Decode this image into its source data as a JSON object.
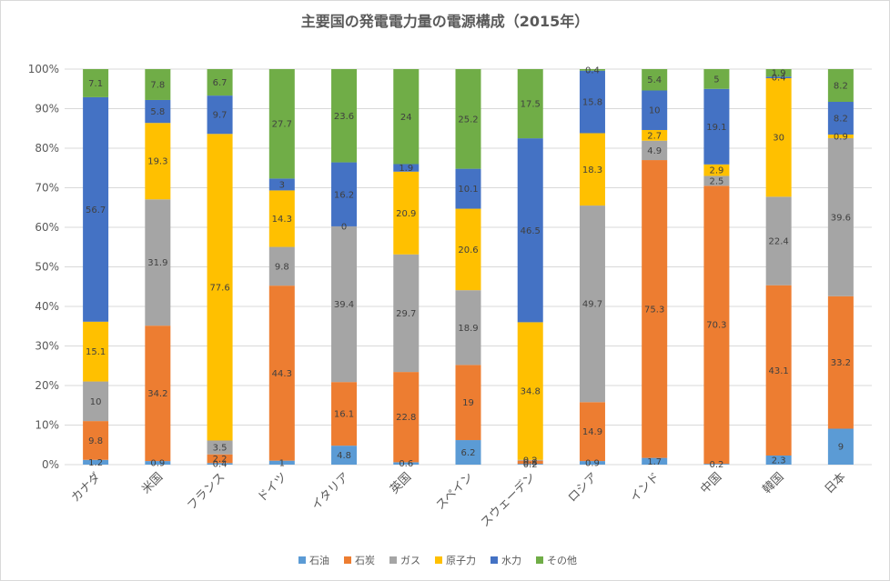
{
  "chart_data": {
    "type": "bar",
    "stacked": "percent",
    "title": "主要国の発電電力量の電源構成（2015年）",
    "ylim": [
      0,
      100
    ],
    "y_ticks": [
      "0%",
      "10%",
      "20%",
      "30%",
      "40%",
      "50%",
      "60%",
      "70%",
      "80%",
      "90%",
      "100%"
    ],
    "grid": true,
    "legend_position": "bottom",
    "categories": [
      "カナダ",
      "米国",
      "フランス",
      "ドイツ",
      "イタリア",
      "英国",
      "スペイン",
      "スウェーデン",
      "ロシア",
      "インド",
      "中国",
      "韓国",
      "日本"
    ],
    "series": [
      {
        "name": "石油",
        "color": "#5B9BD5",
        "values": [
          1.2,
          0.9,
          0.4,
          1,
          4.8,
          0.6,
          6.2,
          0.2,
          0.9,
          1.7,
          0.2,
          2.3,
          9
        ]
      },
      {
        "name": "石炭",
        "color": "#ED7D31",
        "values": [
          9.8,
          34.2,
          2.2,
          44.3,
          16.1,
          22.8,
          19,
          0.8,
          14.9,
          75.3,
          70.3,
          43.1,
          33.2
        ]
      },
      {
        "name": "ガス",
        "color": "#A5A5A5",
        "values": [
          10,
          31.9,
          3.5,
          9.8,
          39.4,
          29.7,
          18.9,
          0.2,
          49.7,
          4.9,
          2.5,
          22.4,
          39.6
        ]
      },
      {
        "name": "原子力",
        "color": "#FFC000",
        "values": [
          15.1,
          19.3,
          77.6,
          14.3,
          0,
          20.9,
          20.6,
          34.8,
          18.3,
          2.7,
          2.9,
          30,
          0.9
        ]
      },
      {
        "name": "水力",
        "color": "#4472C4",
        "values": [
          56.7,
          5.8,
          9.7,
          3,
          16.2,
          1.9,
          10.1,
          46.5,
          15.8,
          10,
          19.1,
          0.4,
          8.2
        ]
      },
      {
        "name": "その他",
        "color": "#70AD47",
        "values": [
          7.1,
          7.8,
          6.7,
          27.7,
          23.6,
          24,
          25.2,
          17.5,
          0.4,
          5.4,
          5,
          1.9,
          8.2
        ]
      }
    ]
  }
}
